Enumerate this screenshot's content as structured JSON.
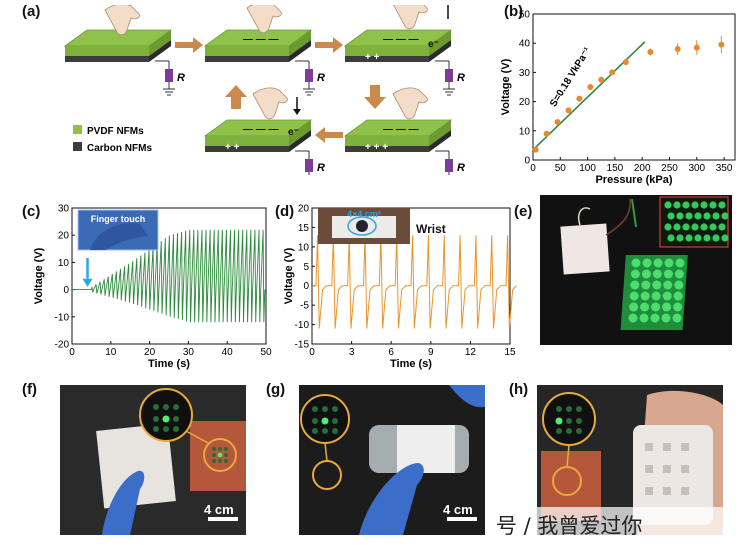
{
  "labels": {
    "a": "(a)",
    "b": "(b)",
    "c": "(c)",
    "d": "(d)",
    "e": "(e)",
    "f": "(f)",
    "g": "(g)",
    "h": "(h)"
  },
  "panel_a": {
    "legend_pvdf": "PVDF NFMs",
    "legend_carbon": "Carbon NFMs",
    "resistor": "R",
    "electron": "e⁻",
    "colors": {
      "pvdf": "#8fc24a",
      "carbon": "#3c3c3c",
      "arrow": "#c98a4b",
      "resistor": "#7d3c98"
    }
  },
  "panel_e": {},
  "panel_f": {
    "scale": "4 cm"
  },
  "panel_g": {
    "scale": "4 cm"
  },
  "panel_h": {},
  "watermark": "号 / 我曾爱过你",
  "chart_data": [
    {
      "id": "b",
      "type": "scatter",
      "xlabel": "Pressure (kPa)",
      "ylabel": "Voltage (V)",
      "xlim": [
        0,
        370
      ],
      "ylim": [
        0,
        50
      ],
      "xticks": [
        0,
        50,
        100,
        150,
        200,
        250,
        300,
        350
      ],
      "yticks": [
        0,
        10,
        20,
        30,
        40,
        50
      ],
      "x": [
        5,
        25,
        45,
        65,
        85,
        105,
        125,
        145,
        170,
        215,
        265,
        300,
        345
      ],
      "y": [
        3.5,
        9,
        13,
        17,
        21,
        25,
        27.5,
        30,
        33.5,
        37,
        38,
        38.5,
        39.5
      ],
      "yerr": [
        0.5,
        0.5,
        0.6,
        0.6,
        0.7,
        0.7,
        0.8,
        0.8,
        1,
        1.2,
        2,
        2.5,
        3
      ],
      "fit": {
        "x": [
          0,
          205
        ],
        "y": [
          3.5,
          40.5
        ]
      },
      "annotation": "S=0.18 VkPa⁻¹",
      "colors": {
        "points": "#e8892c",
        "fit": "#2e8b3e"
      }
    },
    {
      "id": "c",
      "type": "line",
      "xlabel": "Time (s)",
      "ylabel": "Voltage (V)",
      "xlim": [
        0,
        50
      ],
      "ylim": [
        -20,
        30
      ],
      "xticks": [
        0,
        10,
        20,
        30,
        40,
        50
      ],
      "yticks": [
        -20,
        -10,
        0,
        10,
        20,
        30
      ],
      "inset": "Finger touch",
      "signal": {
        "start": 5,
        "end": 50,
        "period": 1.05,
        "envelope_t": [
          5,
          15,
          25,
          30,
          50
        ],
        "envelope_pos": [
          1,
          10,
          20,
          22,
          22
        ],
        "envelope_neg": [
          -1,
          -5,
          -10,
          -12,
          -12
        ]
      },
      "color": "#2e8b3e"
    },
    {
      "id": "d",
      "type": "line",
      "xlabel": "Time (s)",
      "ylabel": "Voltage (V)",
      "xlim": [
        0,
        15
      ],
      "ylim": [
        -15,
        20
      ],
      "xticks": [
        0,
        3,
        6,
        9,
        12,
        15
      ],
      "yticks": [
        -15,
        -10,
        -5,
        0,
        5,
        10,
        15,
        20
      ],
      "inset_area": "4×4 cm²",
      "inset_site": "Wrist",
      "signal": {
        "start": 0.3,
        "end": 14.7,
        "period": 1.2,
        "peak": 13,
        "trough": -11
      },
      "color": "#e8952c"
    }
  ]
}
